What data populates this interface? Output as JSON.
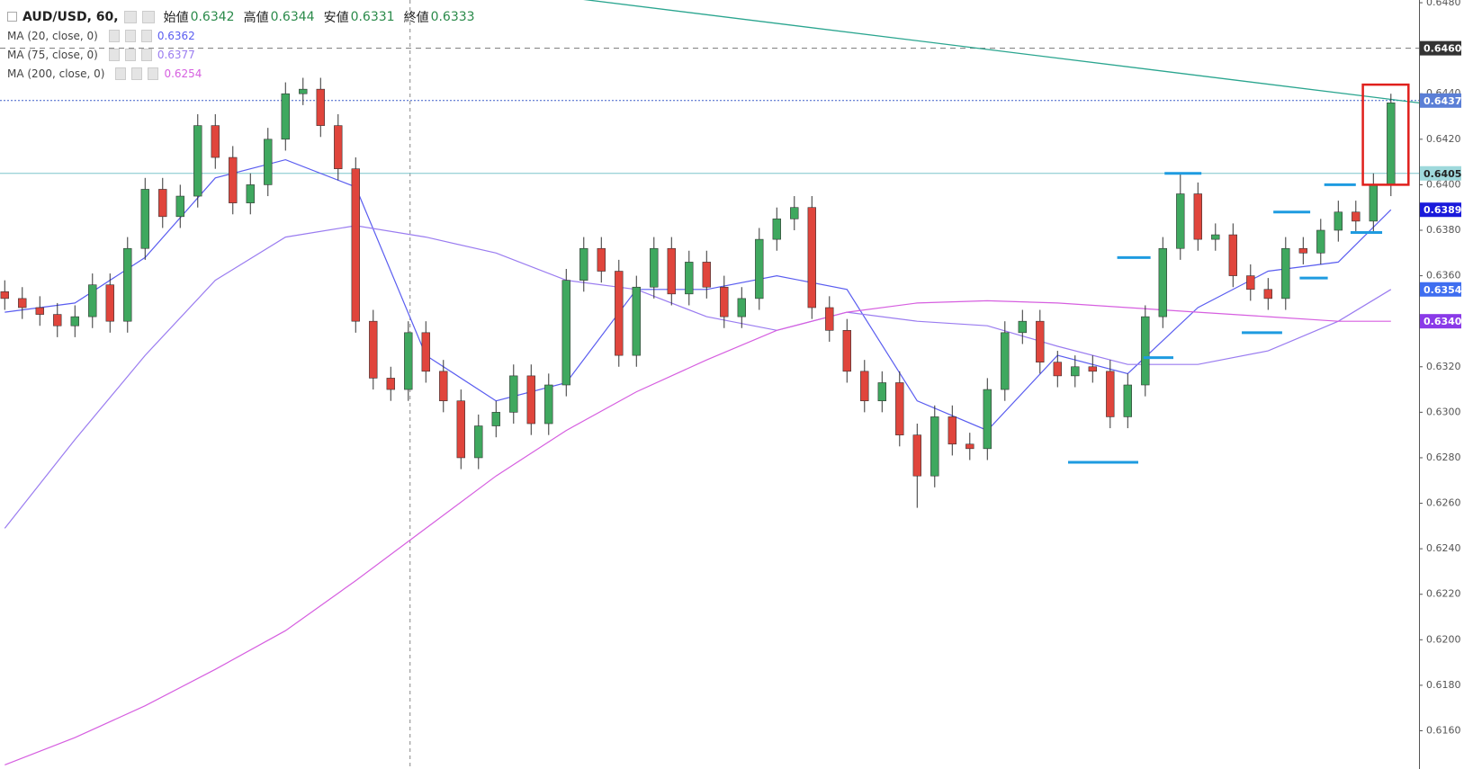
{
  "chart_data": {
    "type": "candlestick",
    "title": "AUD/USD, 60,",
    "ohlc_header": [
      {
        "name": "始値",
        "value": 0.6342
      },
      {
        "name": "高値",
        "value": 0.6344
      },
      {
        "name": "安値",
        "value": 0.6331
      },
      {
        "name": "終値",
        "value": 0.6333
      }
    ],
    "up_color": "#3fa85f",
    "down_color": "#e0453c",
    "open": [
      0.6353,
      0.635,
      0.6346,
      0.6343,
      0.6338,
      0.6342,
      0.6356,
      0.634,
      0.6372,
      0.6398,
      0.6386,
      0.6395,
      0.6426,
      0.6412,
      0.6392,
      0.64,
      0.642,
      0.644,
      0.6442,
      0.6426,
      0.6407,
      0.634,
      0.6315,
      0.631,
      0.6335,
      0.6318,
      0.6305,
      0.628,
      0.6294,
      0.63,
      0.6316,
      0.6295,
      0.6312,
      0.6358,
      0.6372,
      0.6362,
      0.6325,
      0.6355,
      0.6372,
      0.6352,
      0.6366,
      0.6355,
      0.6342,
      0.635,
      0.6376,
      0.6385,
      0.639,
      0.6346,
      0.6336,
      0.6318,
      0.6305,
      0.6313,
      0.629,
      0.6272,
      0.6298,
      0.6286,
      0.6284,
      0.631,
      0.6335,
      0.634,
      0.6322,
      0.6316,
      0.632,
      0.6318,
      0.6298,
      0.6312,
      0.6342,
      0.6372,
      0.6396,
      0.6376,
      0.6378,
      0.636,
      0.6354,
      0.635,
      0.6372,
      0.637,
      0.638,
      0.6388,
      0.6384,
      0.64
    ],
    "high": [
      0.6358,
      0.6355,
      0.6351,
      0.6348,
      0.6347,
      0.6361,
      0.6361,
      0.6377,
      0.6403,
      0.6403,
      0.64,
      0.6431,
      0.6431,
      0.6417,
      0.6405,
      0.6425,
      0.6445,
      0.6447,
      0.6447,
      0.6431,
      0.6412,
      0.6345,
      0.632,
      0.634,
      0.634,
      0.6323,
      0.631,
      0.6299,
      0.6305,
      0.6321,
      0.6321,
      0.6317,
      0.6363,
      0.6377,
      0.6377,
      0.6367,
      0.636,
      0.6377,
      0.6377,
      0.6371,
      0.6371,
      0.636,
      0.6355,
      0.6381,
      0.639,
      0.6395,
      0.6395,
      0.6351,
      0.6341,
      0.6323,
      0.6318,
      0.6318,
      0.6295,
      0.6303,
      0.6303,
      0.6291,
      0.6315,
      0.634,
      0.6345,
      0.6345,
      0.6327,
      0.6325,
      0.6325,
      0.6323,
      0.6317,
      0.6347,
      0.6377,
      0.6405,
      0.6401,
      0.6383,
      0.6383,
      0.6365,
      0.6359,
      0.6377,
      0.6377,
      0.6385,
      0.6393,
      0.6393,
      0.6405,
      0.644
    ],
    "low": [
      0.6345,
      0.6341,
      0.6338,
      0.6333,
      0.6333,
      0.6337,
      0.6335,
      0.6335,
      0.6367,
      0.6381,
      0.6381,
      0.639,
      0.6407,
      0.6387,
      0.6387,
      0.6395,
      0.6415,
      0.6435,
      0.6421,
      0.6402,
      0.6335,
      0.631,
      0.6305,
      0.6305,
      0.6313,
      0.63,
      0.6275,
      0.6275,
      0.6289,
      0.6295,
      0.629,
      0.629,
      0.6307,
      0.6353,
      0.6357,
      0.632,
      0.632,
      0.635,
      0.6347,
      0.6347,
      0.635,
      0.6337,
      0.6337,
      0.6345,
      0.6371,
      0.638,
      0.6341,
      0.6331,
      0.6313,
      0.63,
      0.63,
      0.6285,
      0.6258,
      0.6267,
      0.6281,
      0.6279,
      0.6279,
      0.6305,
      0.633,
      0.6317,
      0.6311,
      0.6311,
      0.6313,
      0.6293,
      0.6293,
      0.6307,
      0.6337,
      0.6367,
      0.6371,
      0.6371,
      0.6355,
      0.6349,
      0.6345,
      0.6345,
      0.6365,
      0.6365,
      0.6375,
      0.6379,
      0.6379,
      0.6395
    ],
    "close": [
      0.635,
      0.6346,
      0.6343,
      0.6338,
      0.6342,
      0.6356,
      0.634,
      0.6372,
      0.6398,
      0.6386,
      0.6395,
      0.6426,
      0.6412,
      0.6392,
      0.64,
      0.642,
      0.644,
      0.6442,
      0.6426,
      0.6407,
      0.634,
      0.6315,
      0.631,
      0.6335,
      0.6318,
      0.6305,
      0.628,
      0.6294,
      0.63,
      0.6316,
      0.6295,
      0.6312,
      0.6358,
      0.6372,
      0.6362,
      0.6325,
      0.6355,
      0.6372,
      0.6352,
      0.6366,
      0.6355,
      0.6342,
      0.635,
      0.6376,
      0.6385,
      0.639,
      0.6346,
      0.6336,
      0.6318,
      0.6305,
      0.6313,
      0.629,
      0.6272,
      0.6298,
      0.6286,
      0.6284,
      0.631,
      0.6335,
      0.634,
      0.6322,
      0.6316,
      0.632,
      0.6318,
      0.6298,
      0.6312,
      0.6342,
      0.6372,
      0.6396,
      0.6376,
      0.6378,
      0.636,
      0.6354,
      0.635,
      0.6372,
      0.637,
      0.638,
      0.6388,
      0.6384,
      0.64,
      0.6436
    ],
    "xlim": [
      -0.27,
      80.6
    ],
    "ylim": [
      0.61432,
      0.64812
    ],
    "yticks": [
      {
        "value": 0.616,
        "label": "0.6160"
      },
      {
        "value": 0.618,
        "label": "0.6180"
      },
      {
        "value": 0.62,
        "label": "0.6200"
      },
      {
        "value": 0.622,
        "label": "0.6220"
      },
      {
        "value": 0.624,
        "label": "0.6240"
      },
      {
        "value": 0.626,
        "label": "0.6260"
      },
      {
        "value": 0.628,
        "label": "0.6280"
      },
      {
        "value": 0.63,
        "label": "0.6300"
      },
      {
        "value": 0.632,
        "label": "0.6320"
      },
      {
        "value": 0.634,
        "label": "0.6340"
      },
      {
        "value": 0.636,
        "label": "0.6360"
      },
      {
        "value": 0.638,
        "label": "0.6380"
      },
      {
        "value": 0.64,
        "label": "0.6400"
      },
      {
        "value": 0.642,
        "label": "0.6420"
      },
      {
        "value": 0.644,
        "label": "0.6440"
      },
      {
        "value": 0.646,
        "label": "0.6460"
      },
      {
        "value": 0.648,
        "label": "0.6480"
      }
    ],
    "series": [
      {
        "name": "MA (20, close, 0)",
        "legend_value": 0.6362,
        "color": "#5a5df0",
        "label_color": "#1a1adb",
        "price_label": 0.6389,
        "x": [
          0,
          4,
          8,
          12,
          16,
          20,
          24,
          28,
          32,
          36,
          40,
          44,
          48,
          52,
          56,
          60,
          64,
          68,
          72,
          76,
          79
        ],
        "values": [
          0.6344,
          0.6348,
          0.6368,
          0.6403,
          0.6411,
          0.6399,
          0.6325,
          0.6305,
          0.6313,
          0.6354,
          0.6354,
          0.636,
          0.6354,
          0.6305,
          0.6292,
          0.6325,
          0.6317,
          0.6346,
          0.6362,
          0.6366,
          0.6389
        ]
      },
      {
        "name": "MA (75, close, 0)",
        "legend_value": 0.6377,
        "color": "#9a7cf0",
        "label_color": "#3f6ef0",
        "price_label": 0.6354,
        "x": [
          0,
          4,
          8,
          12,
          16,
          20,
          24,
          28,
          32,
          36,
          40,
          44,
          48,
          52,
          56,
          60,
          64,
          68,
          72,
          76,
          79
        ],
        "values": [
          0.6249,
          0.6288,
          0.6325,
          0.6358,
          0.6377,
          0.6382,
          0.6377,
          0.637,
          0.6358,
          0.6354,
          0.6342,
          0.6336,
          0.6344,
          0.634,
          0.6338,
          0.6329,
          0.6321,
          0.6321,
          0.6327,
          0.634,
          0.6354
        ]
      },
      {
        "name": "MA (200, close, 0)",
        "legend_value": 0.6254,
        "color": "#d65fe0",
        "label_color": "#8a3ae8",
        "price_label": {
          "value": 0.634,
          "label": "0.6340"
        },
        "x": [
          0,
          4,
          8,
          12,
          16,
          20,
          24,
          28,
          32,
          36,
          40,
          44,
          48,
          52,
          56,
          60,
          64,
          68,
          72,
          76,
          79
        ],
        "values": [
          0.6145,
          0.6157,
          0.6171,
          0.6187,
          0.6204,
          0.6226,
          0.6249,
          0.6272,
          0.6292,
          0.6309,
          0.6323,
          0.6336,
          0.6344,
          0.6348,
          0.6349,
          0.6348,
          0.6346,
          0.6344,
          0.6342,
          0.634,
          0.634
        ]
      }
    ],
    "hlines": [
      {
        "value": 0.646,
        "label": "0.6460",
        "color": "#777777",
        "label_color": "#333333",
        "style": "dashed"
      },
      {
        "value": 0.6437,
        "color": "#3f5fc8",
        "label_color": "#5b7fd6",
        "style": "dotted"
      },
      {
        "value": 0.6405,
        "color": "#7cc5cc",
        "label_color": "#9fd9dc",
        "style": "solid"
      }
    ],
    "trendline": {
      "x": [
        32.4,
        80.6
      ],
      "values": [
        0.6482,
        0.6436
      ],
      "color": "#2aa58f"
    },
    "crosshair_x": 23.1,
    "markers": {
      "color": "#1e9be0",
      "items": [
        {
          "x": [
            60.6,
            64.6
          ],
          "value": 0.6278
        },
        {
          "x": [
            63.4,
            65.3
          ],
          "value": 0.6368
        },
        {
          "x": [
            66.1,
            68.2
          ],
          "value": 0.6405
        },
        {
          "x": [
            64.9,
            66.6
          ],
          "value": 0.6324
        },
        {
          "x": [
            70.5,
            72.8
          ],
          "value": 0.6335
        },
        {
          "x": [
            72.3,
            74.4
          ],
          "value": 0.6388
        },
        {
          "x": [
            73.8,
            75.4
          ],
          "value": 0.6359
        },
        {
          "x": [
            75.2,
            77.0
          ],
          "value": 0.64
        },
        {
          "x": [
            76.7,
            78.5
          ],
          "value": 0.6379
        }
      ]
    },
    "highlight": {
      "x": [
        77.4,
        80.0
      ],
      "values": [
        0.6444,
        0.64
      ],
      "color": "#e0201c"
    }
  }
}
